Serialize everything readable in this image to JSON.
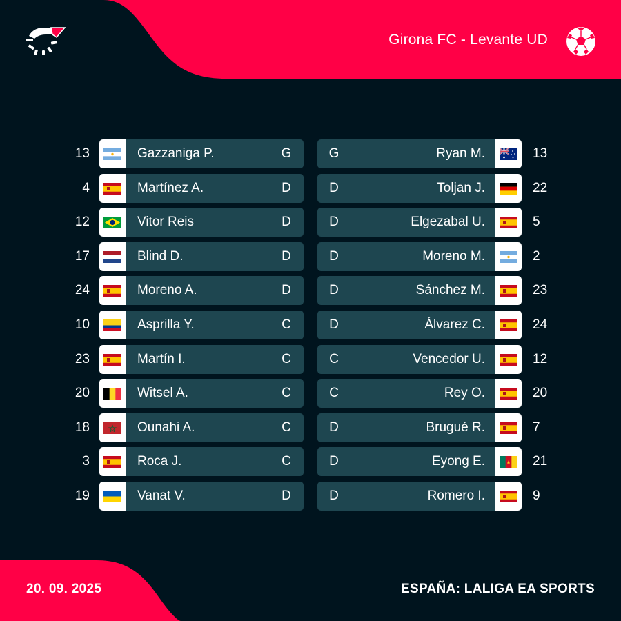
{
  "header": {
    "match_title": "Girona FC - Levante UD",
    "logo_icon": "flashscore-logo-icon",
    "sport_icon": "soccer-ball-icon",
    "accent_color": "#ff0046"
  },
  "home": {
    "players": [
      {
        "number": "13",
        "name": "Gazzaniga P.",
        "pos": "G",
        "flag": "argentina"
      },
      {
        "number": "4",
        "name": "Martínez A.",
        "pos": "D",
        "flag": "spain"
      },
      {
        "number": "12",
        "name": "Vitor Reis",
        "pos": "D",
        "flag": "brazil"
      },
      {
        "number": "17",
        "name": "Blind D.",
        "pos": "D",
        "flag": "netherlands"
      },
      {
        "number": "24",
        "name": "Moreno A.",
        "pos": "D",
        "flag": "spain"
      },
      {
        "number": "10",
        "name": "Asprilla Y.",
        "pos": "C",
        "flag": "colombia"
      },
      {
        "number": "23",
        "name": "Martín I.",
        "pos": "C",
        "flag": "spain"
      },
      {
        "number": "20",
        "name": "Witsel A.",
        "pos": "C",
        "flag": "belgium"
      },
      {
        "number": "18",
        "name": "Ounahi A.",
        "pos": "C",
        "flag": "morocco"
      },
      {
        "number": "3",
        "name": "Roca J.",
        "pos": "C",
        "flag": "spain"
      },
      {
        "number": "19",
        "name": "Vanat V.",
        "pos": "D",
        "flag": "ukraine"
      }
    ]
  },
  "away": {
    "players": [
      {
        "number": "13",
        "name": "Ryan M.",
        "pos": "G",
        "flag": "australia"
      },
      {
        "number": "22",
        "name": "Toljan J.",
        "pos": "D",
        "flag": "germany"
      },
      {
        "number": "5",
        "name": "Elgezabal U.",
        "pos": "D",
        "flag": "spain"
      },
      {
        "number": "2",
        "name": "Moreno M.",
        "pos": "D",
        "flag": "argentina"
      },
      {
        "number": "23",
        "name": "Sánchez M.",
        "pos": "D",
        "flag": "spain"
      },
      {
        "number": "24",
        "name": "Álvarez C.",
        "pos": "D",
        "flag": "spain"
      },
      {
        "number": "12",
        "name": "Vencedor U.",
        "pos": "C",
        "flag": "spain"
      },
      {
        "number": "20",
        "name": "Rey O.",
        "pos": "C",
        "flag": "spain"
      },
      {
        "number": "7",
        "name": "Brugué R.",
        "pos": "D",
        "flag": "spain"
      },
      {
        "number": "21",
        "name": "Eyong E.",
        "pos": "D",
        "flag": "cameroon"
      },
      {
        "number": "9",
        "name": "Romero I.",
        "pos": "D",
        "flag": "spain"
      }
    ]
  },
  "footer": {
    "date": "20. 09. 2025",
    "competition": "ESPAÑA: LALIGA EA SPORTS"
  }
}
